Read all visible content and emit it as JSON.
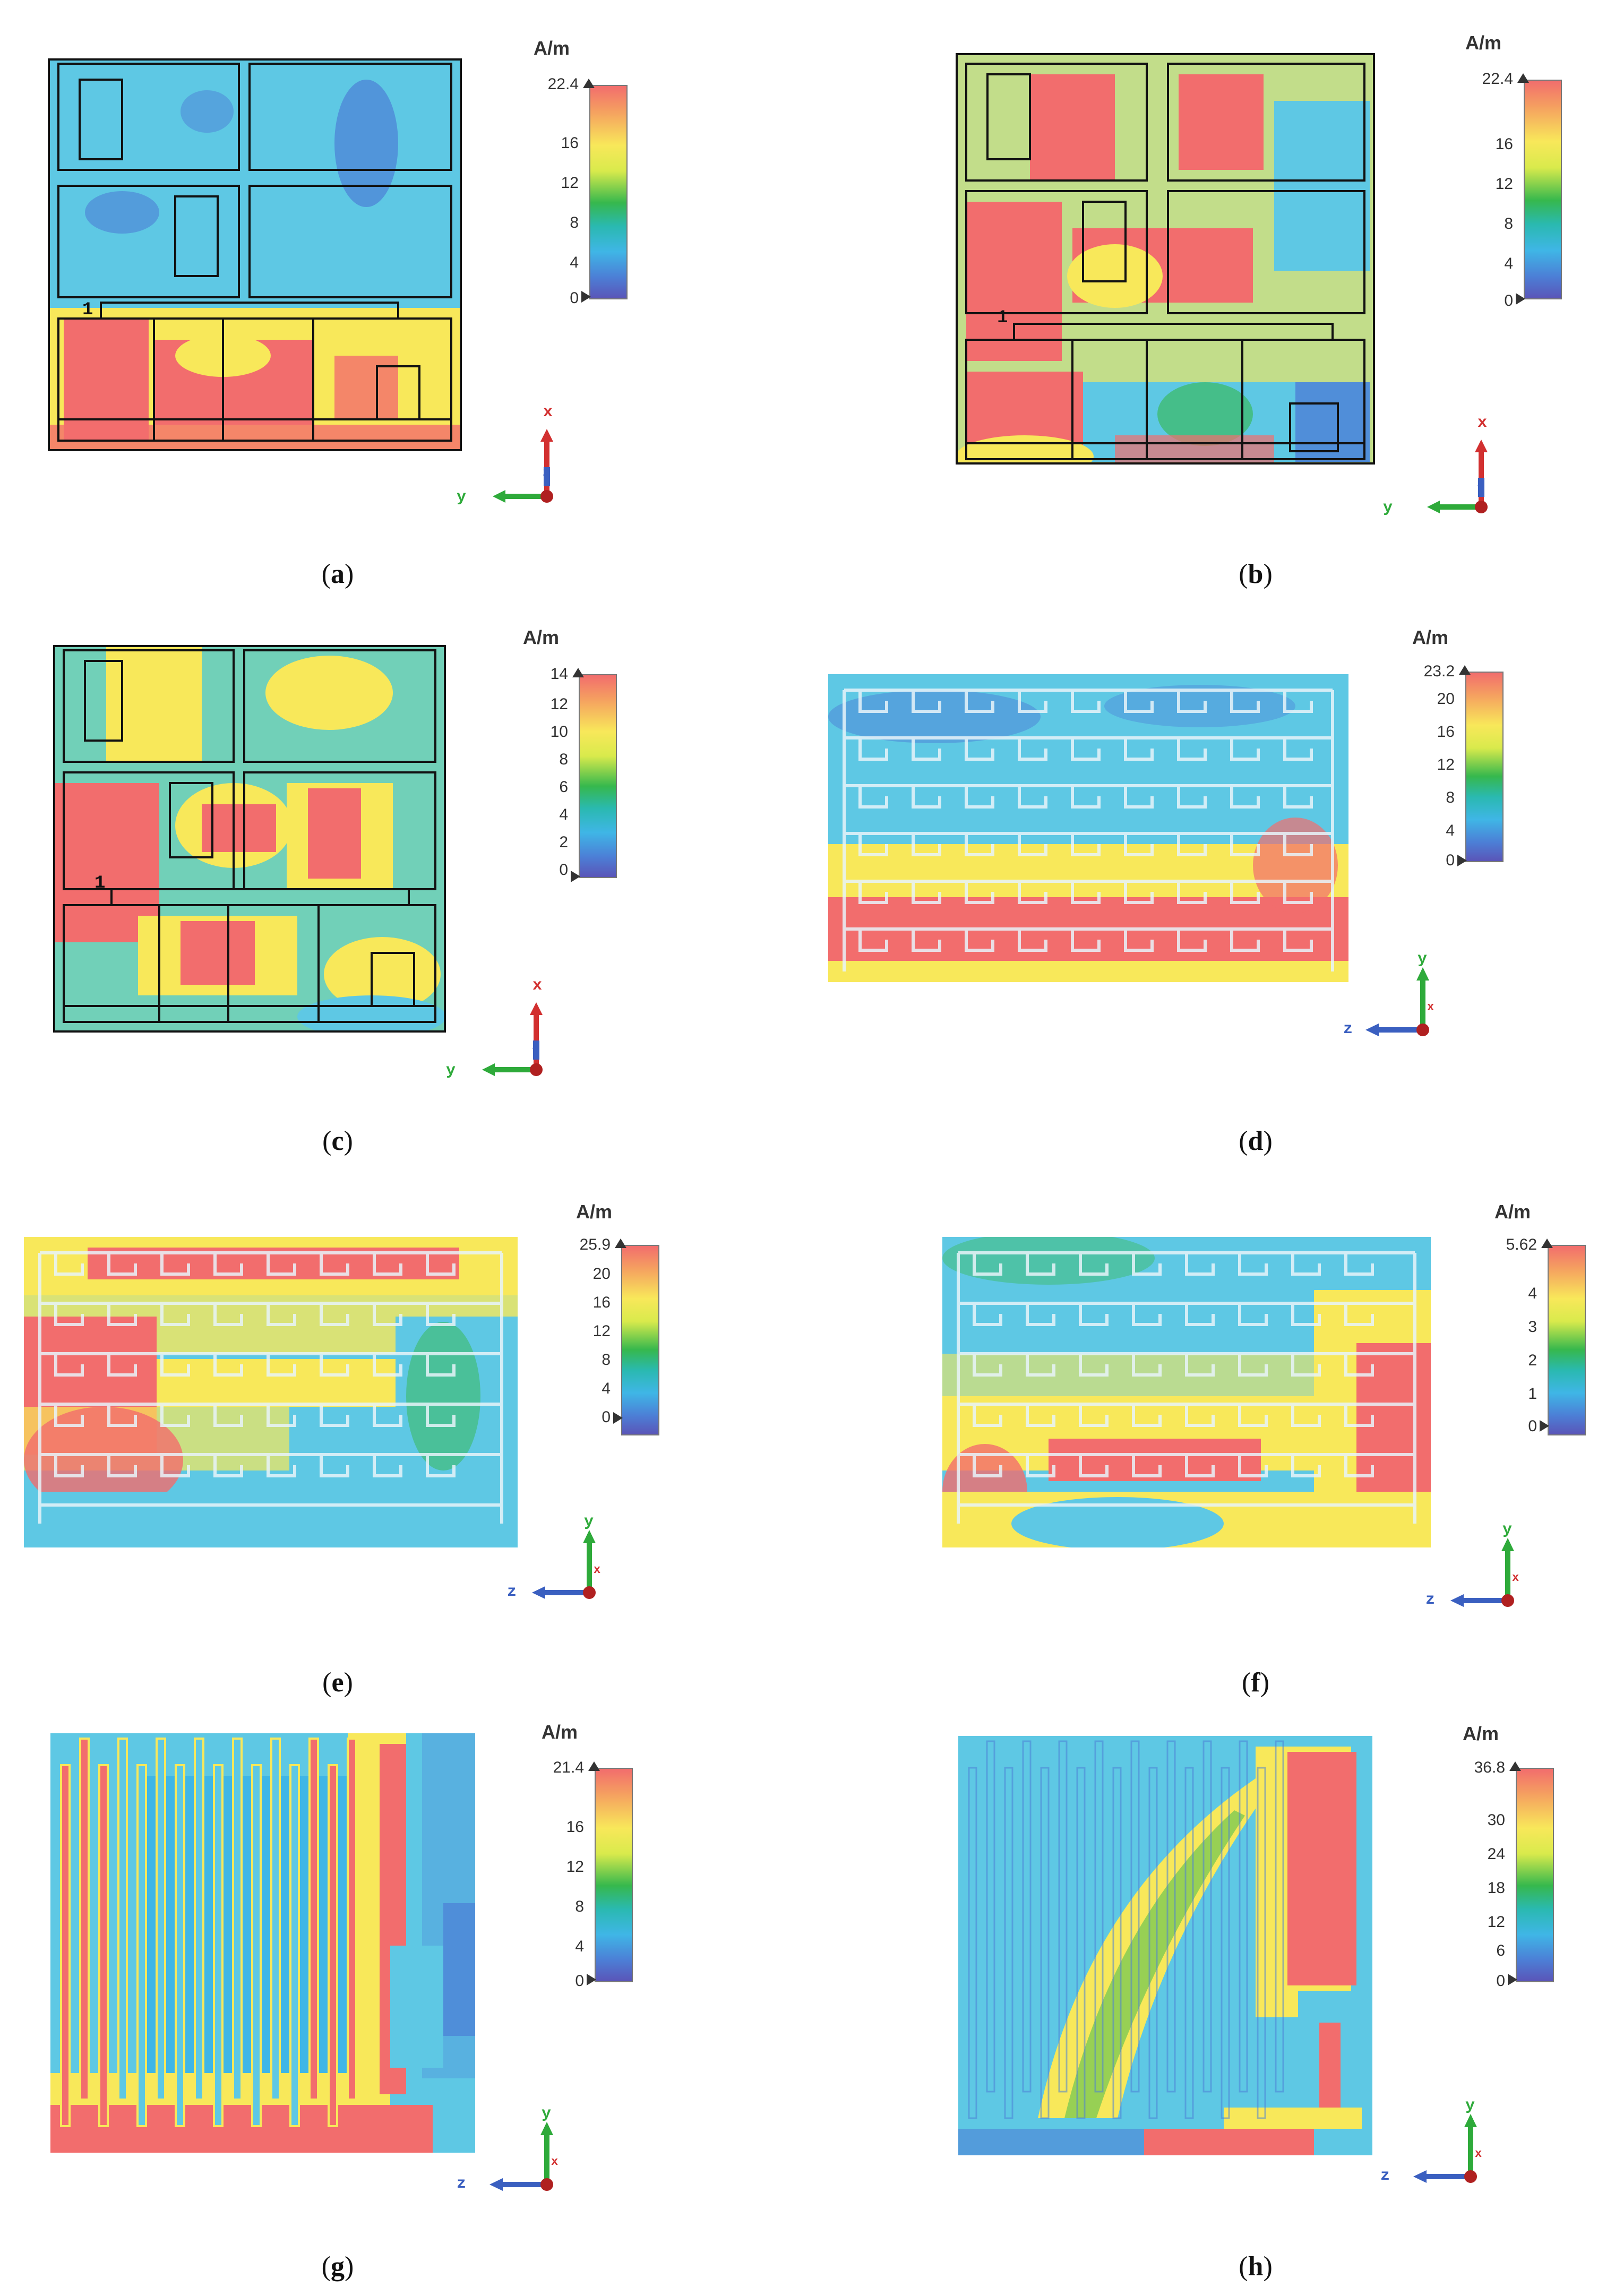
{
  "unit_label": "A/m",
  "axis_labels": {
    "x": "x",
    "y": "y",
    "z": "z"
  },
  "port_label": "1",
  "colors": {
    "red": "#f26d6d",
    "yellow": "#f8e85a",
    "green": "#36b84d",
    "cyan": "#5ec8e4",
    "blue": "#4c7fd6",
    "outline": "#111111"
  },
  "panels": {
    "a": {
      "caption_open": "(",
      "caption_letter": "a",
      "caption_close": ")",
      "max": "22.4",
      "ticks": [
        "16",
        "12",
        "8",
        "4",
        "0"
      ],
      "axes": [
        "x",
        "y",
        "z"
      ]
    },
    "b": {
      "caption_open": "(",
      "caption_letter": "b",
      "caption_close": ")",
      "max": "22.4",
      "ticks": [
        "16",
        "12",
        "8",
        "4",
        "0"
      ],
      "axes": [
        "x",
        "y",
        "z"
      ]
    },
    "c": {
      "caption_open": "(",
      "caption_letter": "c",
      "caption_close": ")",
      "max": "14",
      "ticks": [
        "12",
        "10",
        "8",
        "6",
        "4",
        "2",
        "0"
      ],
      "axes": [
        "x",
        "y",
        "z"
      ]
    },
    "d": {
      "caption_open": "(",
      "caption_letter": "d",
      "caption_close": ")",
      "max": "23.2",
      "ticks": [
        "20",
        "16",
        "12",
        "8",
        "4",
        "0"
      ],
      "axes": [
        "y",
        "z",
        "x"
      ]
    },
    "e": {
      "caption_open": "(",
      "caption_letter": "e",
      "caption_close": ")",
      "max": "25.9",
      "ticks": [
        "20",
        "16",
        "12",
        "8",
        "4",
        "0"
      ],
      "axes": [
        "y",
        "z",
        "x"
      ]
    },
    "f": {
      "caption_open": "(",
      "caption_letter": "f",
      "caption_close": ")",
      "max": "5.62",
      "ticks": [
        "4",
        "3",
        "2",
        "1",
        "0"
      ],
      "axes": [
        "y",
        "z",
        "x"
      ]
    },
    "g": {
      "caption_open": "(",
      "caption_letter": "g",
      "caption_close": ")",
      "max": "21.4",
      "ticks": [
        "16",
        "12",
        "8",
        "4",
        "0"
      ],
      "axes": [
        "y",
        "z",
        "x"
      ]
    },
    "h": {
      "caption_open": "(",
      "caption_letter": "h",
      "caption_close": ")",
      "max": "36.8",
      "ticks": [
        "30",
        "24",
        "18",
        "12",
        "6",
        "0"
      ],
      "axes": [
        "y",
        "z",
        "x"
      ]
    }
  }
}
